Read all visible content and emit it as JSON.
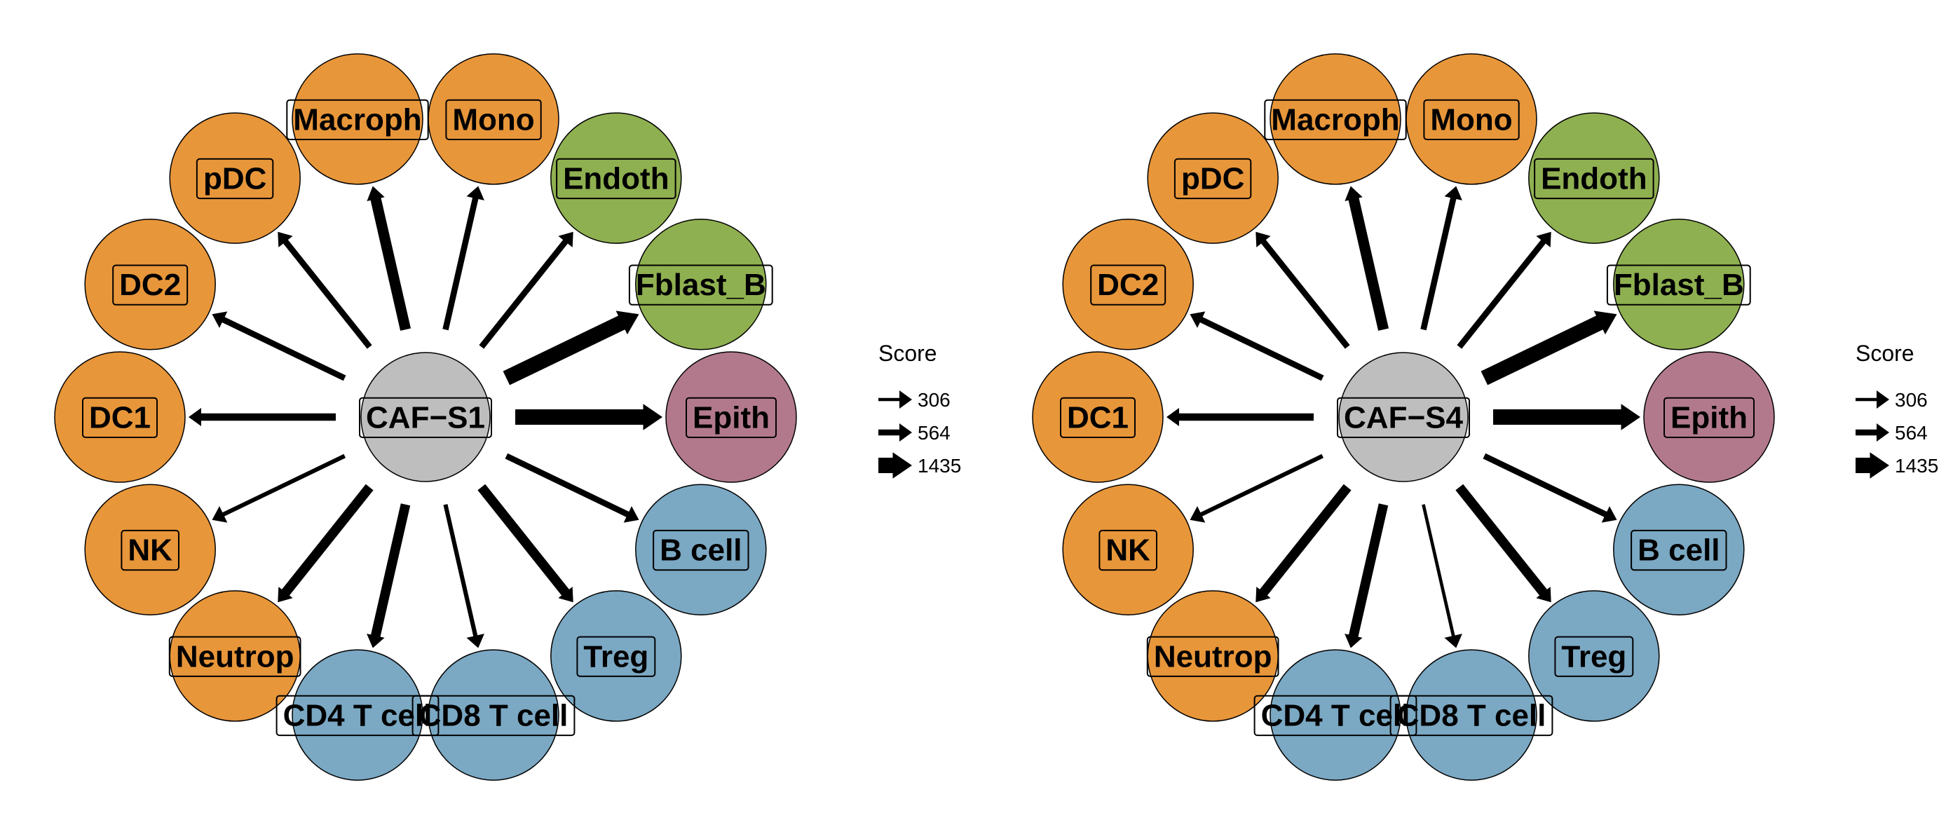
{
  "colors": {
    "myeloid": "#E8963A",
    "stromal": "#8FB050",
    "epithelial": "#B2798C",
    "lymphoid": "#7BA8C3",
    "center": "#BEBEBE",
    "arrow": "#000000",
    "outline": "#000000"
  },
  "diagrams": [
    {
      "center": "CAF−S1",
      "targets": [
        {
          "label": "Epith",
          "group": "epithelial",
          "score": 1435
        },
        {
          "label": "Fblast_B",
          "group": "stromal",
          "score": 1435
        },
        {
          "label": "Endoth",
          "group": "stromal",
          "score": 564
        },
        {
          "label": "Mono",
          "group": "myeloid",
          "score": 564
        },
        {
          "label": "Macroph",
          "group": "myeloid",
          "score": 1000
        },
        {
          "label": "pDC",
          "group": "myeloid",
          "score": 564
        },
        {
          "label": "DC2",
          "group": "myeloid",
          "score": 564
        },
        {
          "label": "DC1",
          "group": "myeloid",
          "score": 700
        },
        {
          "label": "NK",
          "group": "myeloid",
          "score": 400
        },
        {
          "label": "Neutrop",
          "group": "myeloid",
          "score": 900
        },
        {
          "label": "CD4 T cell",
          "group": "lymphoid",
          "score": 900
        },
        {
          "label": "CD8 T cell",
          "group": "lymphoid",
          "score": 400
        },
        {
          "label": "Treg",
          "group": "lymphoid",
          "score": 900
        },
        {
          "label": "B cell",
          "group": "lymphoid",
          "score": 564
        }
      ]
    },
    {
      "center": "CAF−S4",
      "targets": [
        {
          "label": "Epith",
          "group": "epithelial",
          "score": 1435
        },
        {
          "label": "Fblast_B",
          "group": "stromal",
          "score": 1435
        },
        {
          "label": "Endoth",
          "group": "stromal",
          "score": 564
        },
        {
          "label": "Mono",
          "group": "myeloid",
          "score": 564
        },
        {
          "label": "Macroph",
          "group": "myeloid",
          "score": 1000
        },
        {
          "label": "pDC",
          "group": "myeloid",
          "score": 564
        },
        {
          "label": "DC2",
          "group": "myeloid",
          "score": 564
        },
        {
          "label": "DC1",
          "group": "myeloid",
          "score": 700
        },
        {
          "label": "NK",
          "group": "myeloid",
          "score": 400
        },
        {
          "label": "Neutrop",
          "group": "myeloid",
          "score": 900
        },
        {
          "label": "CD4 T cell",
          "group": "lymphoid",
          "score": 900
        },
        {
          "label": "CD8 T cell",
          "group": "lymphoid",
          "score": 306
        },
        {
          "label": "Treg",
          "group": "lymphoid",
          "score": 900
        },
        {
          "label": "B cell",
          "group": "lymphoid",
          "score": 564
        }
      ]
    }
  ],
  "legend": {
    "title": "Score",
    "entries": [
      {
        "label": "306",
        "score": 306
      },
      {
        "label": "564",
        "score": 564
      },
      {
        "label": "1435",
        "score": 1435
      }
    ]
  }
}
